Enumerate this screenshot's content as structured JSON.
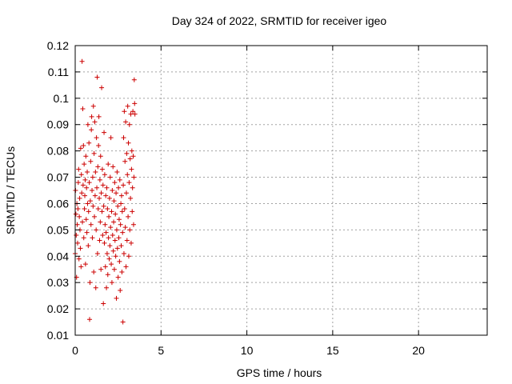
{
  "chart_data": {
    "type": "scatter",
    "title": "Day 324 of 2022, SRMTID for receiver igeo",
    "xlabel": "GPS time / hours",
    "ylabel": "SRMTID / TECUs",
    "xlim": [
      0,
      24
    ],
    "ylim": [
      0.01,
      0.12
    ],
    "x_ticks": [
      0,
      5,
      10,
      15,
      20
    ],
    "y_ticks": [
      0.01,
      0.02,
      0.03,
      0.04,
      0.05,
      0.06,
      0.07,
      0.08,
      0.09,
      0.1,
      0.11,
      0.12
    ],
    "x_tick_labels": [
      "0",
      "5",
      "10",
      "15",
      "20"
    ],
    "y_tick_labels": [
      "0.01",
      "0.02",
      "0.03",
      "0.04",
      "0.05",
      "0.06",
      "0.07",
      "0.08",
      "0.09",
      "0.1",
      "0.11",
      "0.12"
    ],
    "grid": true,
    "marker": "+",
    "color": "#cc0000",
    "series": [
      {
        "points": [
          [
            0.0,
            0.041
          ],
          [
            0.02,
            0.065
          ],
          [
            0.04,
            0.056
          ],
          [
            0.06,
            0.048
          ],
          [
            0.08,
            0.032
          ],
          [
            0.1,
            0.06
          ],
          [
            0.12,
            0.052
          ],
          [
            0.14,
            0.045
          ],
          [
            0.16,
            0.058
          ],
          [
            0.18,
            0.068
          ],
          [
            0.2,
            0.073
          ],
          [
            0.22,
            0.039
          ],
          [
            0.24,
            0.055
          ],
          [
            0.26,
            0.062
          ],
          [
            0.28,
            0.05
          ],
          [
            0.3,
            0.043
          ],
          [
            0.32,
            0.081
          ],
          [
            0.34,
            0.036
          ],
          [
            0.36,
            0.071
          ],
          [
            0.38,
            0.064
          ],
          [
            0.4,
            0.114
          ],
          [
            0.42,
            0.053
          ],
          [
            0.44,
            0.096
          ],
          [
            0.46,
            0.067
          ],
          [
            0.48,
            0.082
          ],
          [
            0.5,
            0.047
          ],
          [
            0.52,
            0.075
          ],
          [
            0.54,
            0.058
          ],
          [
            0.56,
            0.063
          ],
          [
            0.58,
            0.069
          ],
          [
            0.6,
            0.037
          ],
          [
            0.62,
            0.078
          ],
          [
            0.64,
            0.054
          ],
          [
            0.66,
            0.066
          ],
          [
            0.68,
            0.049
          ],
          [
            0.7,
            0.072
          ],
          [
            0.72,
            0.06
          ],
          [
            0.74,
            0.09
          ],
          [
            0.76,
            0.044
          ],
          [
            0.78,
            0.057
          ],
          [
            0.8,
            0.083
          ],
          [
            0.82,
            0.068
          ],
          [
            0.84,
            0.016
          ],
          [
            0.86,
            0.03
          ],
          [
            0.88,
            0.061
          ],
          [
            0.9,
            0.076
          ],
          [
            0.92,
            0.052
          ],
          [
            0.94,
            0.088
          ],
          [
            0.96,
            0.093
          ],
          [
            0.98,
            0.065
          ],
          [
            1.0,
            0.047
          ],
          [
            1.02,
            0.07
          ],
          [
            1.04,
            0.059
          ],
          [
            1.06,
            0.097
          ],
          [
            1.08,
            0.034
          ],
          [
            1.1,
            0.079
          ],
          [
            1.12,
            0.055
          ],
          [
            1.14,
            0.091
          ],
          [
            1.16,
            0.063
          ],
          [
            1.18,
            0.072
          ],
          [
            1.2,
            0.028
          ],
          [
            1.22,
            0.05
          ],
          [
            1.24,
            0.085
          ],
          [
            1.26,
            0.066
          ],
          [
            1.28,
            0.108
          ],
          [
            1.3,
            0.041
          ],
          [
            1.32,
            0.074
          ],
          [
            1.34,
            0.058
          ],
          [
            1.36,
            0.082
          ],
          [
            1.38,
            0.093
          ],
          [
            1.4,
            0.062
          ],
          [
            1.42,
            0.046
          ],
          [
            1.44,
            0.069
          ],
          [
            1.46,
            0.053
          ],
          [
            1.48,
            0.078
          ],
          [
            1.5,
            0.035
          ],
          [
            1.52,
            0.064
          ],
          [
            1.54,
            0.104
          ],
          [
            1.56,
            0.057
          ],
          [
            1.58,
            0.073
          ],
          [
            1.6,
            0.048
          ],
          [
            1.62,
            0.067
          ],
          [
            1.64,
            0.022
          ],
          [
            1.66,
            0.059
          ],
          [
            1.68,
            0.087
          ],
          [
            1.7,
            0.045
          ],
          [
            1.72,
            0.071
          ],
          [
            1.74,
            0.052
          ],
          [
            1.76,
            0.036
          ],
          [
            1.78,
            0.063
          ],
          [
            1.8,
            0.049
          ],
          [
            1.82,
            0.028
          ],
          [
            1.84,
            0.066
          ],
          [
            1.86,
            0.041
          ],
          [
            1.88,
            0.058
          ],
          [
            1.9,
            0.033
          ],
          [
            1.92,
            0.075
          ],
          [
            1.94,
            0.047
          ],
          [
            1.96,
            0.055
          ],
          [
            1.98,
            0.039
          ],
          [
            2.0,
            0.062
          ],
          [
            2.02,
            0.044
          ],
          [
            2.04,
            0.07
          ],
          [
            2.06,
            0.051
          ],
          [
            2.08,
            0.085
          ],
          [
            2.1,
            0.037
          ],
          [
            2.12,
            0.057
          ],
          [
            2.14,
            0.03
          ],
          [
            2.16,
            0.065
          ],
          [
            2.18,
            0.048
          ],
          [
            2.2,
            0.074
          ],
          [
            2.22,
            0.042
          ],
          [
            2.24,
            0.053
          ],
          [
            2.26,
            0.061
          ],
          [
            2.28,
            0.035
          ],
          [
            2.3,
            0.068
          ],
          [
            2.32,
            0.046
          ],
          [
            2.34,
            0.056
          ],
          [
            2.36,
            0.04
          ],
          [
            2.38,
            0.064
          ],
          [
            2.4,
            0.024
          ],
          [
            2.42,
            0.05
          ],
          [
            2.44,
            0.072
          ],
          [
            2.46,
            0.043
          ],
          [
            2.48,
            0.059
          ],
          [
            2.5,
            0.032
          ],
          [
            2.52,
            0.066
          ],
          [
            2.54,
            0.047
          ],
          [
            2.56,
            0.054
          ],
          [
            2.58,
            0.038
          ],
          [
            2.6,
            0.069
          ],
          [
            2.62,
            0.027
          ],
          [
            2.64,
            0.052
          ],
          [
            2.66,
            0.06
          ],
          [
            2.68,
            0.044
          ],
          [
            2.7,
            0.063
          ],
          [
            2.72,
            0.034
          ],
          [
            2.74,
            0.057
          ],
          [
            2.76,
            0.049
          ],
          [
            2.78,
            0.015
          ],
          [
            2.8,
            0.067
          ],
          [
            2.82,
            0.085
          ],
          [
            2.84,
            0.041
          ],
          [
            2.86,
            0.095
          ],
          [
            2.88,
            0.058
          ],
          [
            2.9,
            0.076
          ],
          [
            2.92,
            0.051
          ],
          [
            2.94,
            0.091
          ],
          [
            2.96,
            0.036
          ],
          [
            2.98,
            0.064
          ],
          [
            3.0,
            0.079
          ],
          [
            3.02,
            0.046
          ],
          [
            3.04,
            0.071
          ],
          [
            3.06,
            0.097
          ],
          [
            3.08,
            0.055
          ],
          [
            3.1,
            0.083
          ],
          [
            3.12,
            0.04
          ],
          [
            3.14,
            0.068
          ],
          [
            3.16,
            0.09
          ],
          [
            3.18,
            0.05
          ],
          [
            3.2,
            0.077
          ],
          [
            3.22,
            0.062
          ],
          [
            3.24,
            0.094
          ],
          [
            3.26,
            0.045
          ],
          [
            3.28,
            0.073
          ],
          [
            3.3,
            0.08
          ],
          [
            3.32,
            0.057
          ],
          [
            3.34,
            0.066
          ],
          [
            3.36,
            0.095
          ],
          [
            3.38,
            0.078
          ],
          [
            3.4,
            0.052
          ],
          [
            3.42,
            0.07
          ],
          [
            3.44,
            0.107
          ],
          [
            3.46,
            0.098
          ],
          [
            3.48,
            0.094
          ]
        ]
      }
    ]
  }
}
